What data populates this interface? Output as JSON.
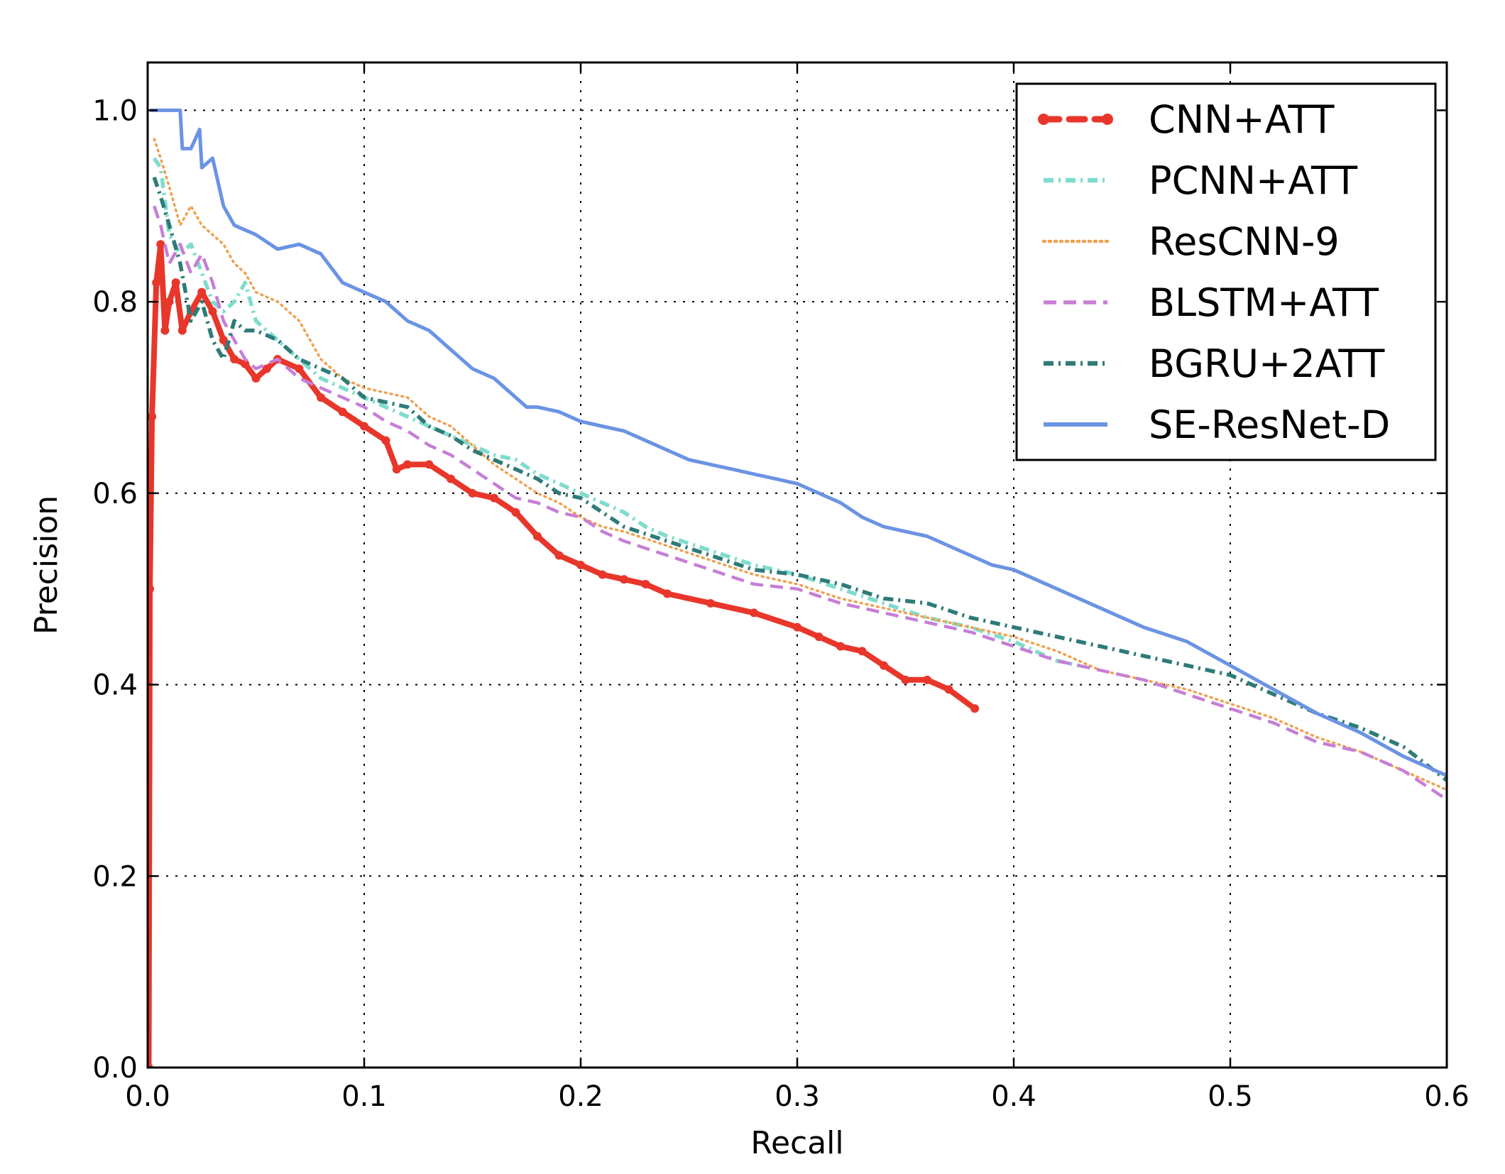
{
  "chart_data": {
    "type": "line",
    "title": "",
    "xlabel": "Recall",
    "ylabel": "Precision",
    "xlim": [
      0.0,
      0.6
    ],
    "ylim": [
      0.0,
      1.05
    ],
    "xticks": [
      "0.0",
      "0.1",
      "0.2",
      "0.3",
      "0.4",
      "0.5",
      "0.6"
    ],
    "yticks": [
      "0.0",
      "0.2",
      "0.4",
      "0.6",
      "0.8",
      "1.0"
    ],
    "grid": true,
    "legend_position": "top-right",
    "series": [
      {
        "name": "CNN+ATT",
        "color": "#e8362b",
        "line_style": "dashed-dot-markers",
        "points": [
          [
            0.0005,
            0.0
          ],
          [
            0.001,
            0.5
          ],
          [
            0.002,
            0.68
          ],
          [
            0.004,
            0.82
          ],
          [
            0.006,
            0.86
          ],
          [
            0.008,
            0.77
          ],
          [
            0.01,
            0.8
          ],
          [
            0.013,
            0.82
          ],
          [
            0.016,
            0.77
          ],
          [
            0.02,
            0.79
          ],
          [
            0.025,
            0.81
          ],
          [
            0.03,
            0.79
          ],
          [
            0.035,
            0.76
          ],
          [
            0.04,
            0.74
          ],
          [
            0.045,
            0.735
          ],
          [
            0.05,
            0.72
          ],
          [
            0.055,
            0.73
          ],
          [
            0.06,
            0.74
          ],
          [
            0.07,
            0.73
          ],
          [
            0.08,
            0.7
          ],
          [
            0.09,
            0.685
          ],
          [
            0.1,
            0.67
          ],
          [
            0.11,
            0.655
          ],
          [
            0.115,
            0.625
          ],
          [
            0.12,
            0.63
          ],
          [
            0.13,
            0.63
          ],
          [
            0.14,
            0.615
          ],
          [
            0.15,
            0.6
          ],
          [
            0.16,
            0.595
          ],
          [
            0.17,
            0.58
          ],
          [
            0.18,
            0.555
          ],
          [
            0.19,
            0.535
          ],
          [
            0.2,
            0.525
          ],
          [
            0.21,
            0.515
          ],
          [
            0.22,
            0.51
          ],
          [
            0.23,
            0.505
          ],
          [
            0.24,
            0.495
          ],
          [
            0.26,
            0.485
          ],
          [
            0.28,
            0.475
          ],
          [
            0.3,
            0.46
          ],
          [
            0.31,
            0.45
          ],
          [
            0.32,
            0.44
          ],
          [
            0.33,
            0.435
          ],
          [
            0.34,
            0.42
          ],
          [
            0.35,
            0.405
          ],
          [
            0.36,
            0.405
          ],
          [
            0.37,
            0.395
          ],
          [
            0.382,
            0.375
          ]
        ]
      },
      {
        "name": "PCNN+ATT",
        "color": "#7edccd",
        "line_style": "dash-dot",
        "points": [
          [
            0.003,
            0.95
          ],
          [
            0.006,
            0.94
          ],
          [
            0.01,
            0.87
          ],
          [
            0.015,
            0.85
          ],
          [
            0.02,
            0.86
          ],
          [
            0.025,
            0.83
          ],
          [
            0.03,
            0.8
          ],
          [
            0.035,
            0.79
          ],
          [
            0.04,
            0.8
          ],
          [
            0.045,
            0.82
          ],
          [
            0.05,
            0.78
          ],
          [
            0.06,
            0.76
          ],
          [
            0.07,
            0.74
          ],
          [
            0.08,
            0.72
          ],
          [
            0.09,
            0.71
          ],
          [
            0.1,
            0.7
          ],
          [
            0.11,
            0.69
          ],
          [
            0.12,
            0.68
          ],
          [
            0.13,
            0.67
          ],
          [
            0.14,
            0.66
          ],
          [
            0.15,
            0.65
          ],
          [
            0.16,
            0.64
          ],
          [
            0.17,
            0.635
          ],
          [
            0.18,
            0.62
          ],
          [
            0.19,
            0.61
          ],
          [
            0.2,
            0.6
          ],
          [
            0.21,
            0.59
          ],
          [
            0.22,
            0.58
          ],
          [
            0.23,
            0.565
          ],
          [
            0.24,
            0.555
          ],
          [
            0.26,
            0.54
          ],
          [
            0.28,
            0.525
          ],
          [
            0.3,
            0.515
          ],
          [
            0.32,
            0.5
          ],
          [
            0.34,
            0.485
          ],
          [
            0.36,
            0.47
          ],
          [
            0.38,
            0.46
          ],
          [
            0.4,
            0.445
          ],
          [
            0.42,
            0.425
          ],
          [
            0.43,
            0.42
          ]
        ]
      },
      {
        "name": "ResCNN-9",
        "color": "#f0a050",
        "line_style": "dotted",
        "points": [
          [
            0.003,
            0.97
          ],
          [
            0.006,
            0.95
          ],
          [
            0.01,
            0.92
          ],
          [
            0.015,
            0.88
          ],
          [
            0.02,
            0.9
          ],
          [
            0.025,
            0.88
          ],
          [
            0.03,
            0.87
          ],
          [
            0.035,
            0.86
          ],
          [
            0.04,
            0.84
          ],
          [
            0.045,
            0.83
          ],
          [
            0.05,
            0.81
          ],
          [
            0.06,
            0.8
          ],
          [
            0.07,
            0.78
          ],
          [
            0.08,
            0.74
          ],
          [
            0.09,
            0.72
          ],
          [
            0.1,
            0.71
          ],
          [
            0.11,
            0.705
          ],
          [
            0.12,
            0.7
          ],
          [
            0.13,
            0.68
          ],
          [
            0.14,
            0.67
          ],
          [
            0.15,
            0.65
          ],
          [
            0.16,
            0.63
          ],
          [
            0.17,
            0.615
          ],
          [
            0.18,
            0.6
          ],
          [
            0.19,
            0.59
          ],
          [
            0.2,
            0.575
          ],
          [
            0.21,
            0.565
          ],
          [
            0.22,
            0.56
          ],
          [
            0.24,
            0.545
          ],
          [
            0.26,
            0.53
          ],
          [
            0.28,
            0.515
          ],
          [
            0.3,
            0.505
          ],
          [
            0.32,
            0.49
          ],
          [
            0.34,
            0.48
          ],
          [
            0.36,
            0.47
          ],
          [
            0.38,
            0.46
          ],
          [
            0.4,
            0.45
          ],
          [
            0.42,
            0.435
          ],
          [
            0.44,
            0.415
          ],
          [
            0.46,
            0.405
          ],
          [
            0.48,
            0.395
          ],
          [
            0.5,
            0.38
          ],
          [
            0.52,
            0.365
          ],
          [
            0.54,
            0.345
          ],
          [
            0.56,
            0.33
          ],
          [
            0.58,
            0.31
          ],
          [
            0.6,
            0.29
          ]
        ]
      },
      {
        "name": "BLSTM+ATT",
        "color": "#c77ed6",
        "line_style": "dashed",
        "points": [
          [
            0.003,
            0.9
          ],
          [
            0.006,
            0.88
          ],
          [
            0.01,
            0.84
          ],
          [
            0.015,
            0.86
          ],
          [
            0.02,
            0.83
          ],
          [
            0.025,
            0.85
          ],
          [
            0.03,
            0.82
          ],
          [
            0.035,
            0.78
          ],
          [
            0.04,
            0.76
          ],
          [
            0.045,
            0.74
          ],
          [
            0.05,
            0.73
          ],
          [
            0.06,
            0.74
          ],
          [
            0.07,
            0.72
          ],
          [
            0.08,
            0.71
          ],
          [
            0.09,
            0.7
          ],
          [
            0.1,
            0.69
          ],
          [
            0.11,
            0.675
          ],
          [
            0.12,
            0.665
          ],
          [
            0.13,
            0.65
          ],
          [
            0.14,
            0.64
          ],
          [
            0.15,
            0.625
          ],
          [
            0.16,
            0.61
          ],
          [
            0.17,
            0.595
          ],
          [
            0.18,
            0.59
          ],
          [
            0.19,
            0.58
          ],
          [
            0.2,
            0.575
          ],
          [
            0.21,
            0.56
          ],
          [
            0.22,
            0.55
          ],
          [
            0.24,
            0.535
          ],
          [
            0.26,
            0.52
          ],
          [
            0.28,
            0.505
          ],
          [
            0.3,
            0.5
          ],
          [
            0.32,
            0.485
          ],
          [
            0.34,
            0.475
          ],
          [
            0.36,
            0.465
          ],
          [
            0.38,
            0.455
          ],
          [
            0.4,
            0.44
          ],
          [
            0.42,
            0.425
          ],
          [
            0.44,
            0.415
          ],
          [
            0.46,
            0.405
          ],
          [
            0.48,
            0.39
          ],
          [
            0.5,
            0.375
          ],
          [
            0.52,
            0.36
          ],
          [
            0.54,
            0.34
          ],
          [
            0.56,
            0.33
          ],
          [
            0.58,
            0.31
          ],
          [
            0.6,
            0.28
          ]
        ]
      },
      {
        "name": "BGRU+2ATT",
        "color": "#2e7b78",
        "line_style": "dash-dot",
        "points": [
          [
            0.003,
            0.93
          ],
          [
            0.006,
            0.91
          ],
          [
            0.01,
            0.88
          ],
          [
            0.015,
            0.84
          ],
          [
            0.02,
            0.78
          ],
          [
            0.025,
            0.8
          ],
          [
            0.03,
            0.76
          ],
          [
            0.035,
            0.74
          ],
          [
            0.04,
            0.78
          ],
          [
            0.045,
            0.77
          ],
          [
            0.05,
            0.77
          ],
          [
            0.06,
            0.76
          ],
          [
            0.07,
            0.74
          ],
          [
            0.08,
            0.73
          ],
          [
            0.09,
            0.72
          ],
          [
            0.1,
            0.7
          ],
          [
            0.11,
            0.695
          ],
          [
            0.12,
            0.69
          ],
          [
            0.13,
            0.67
          ],
          [
            0.14,
            0.66
          ],
          [
            0.15,
            0.645
          ],
          [
            0.16,
            0.635
          ],
          [
            0.17,
            0.625
          ],
          [
            0.18,
            0.615
          ],
          [
            0.19,
            0.6
          ],
          [
            0.2,
            0.595
          ],
          [
            0.21,
            0.58
          ],
          [
            0.22,
            0.565
          ],
          [
            0.24,
            0.55
          ],
          [
            0.26,
            0.535
          ],
          [
            0.28,
            0.52
          ],
          [
            0.3,
            0.515
          ],
          [
            0.32,
            0.505
          ],
          [
            0.34,
            0.49
          ],
          [
            0.36,
            0.485
          ],
          [
            0.38,
            0.47
          ],
          [
            0.4,
            0.46
          ],
          [
            0.42,
            0.45
          ],
          [
            0.44,
            0.44
          ],
          [
            0.46,
            0.43
          ],
          [
            0.48,
            0.42
          ],
          [
            0.5,
            0.41
          ],
          [
            0.52,
            0.39
          ],
          [
            0.54,
            0.37
          ],
          [
            0.56,
            0.355
          ],
          [
            0.58,
            0.335
          ],
          [
            0.6,
            0.3
          ]
        ]
      },
      {
        "name": "SE-ResNet-D",
        "color": "#6b93e4",
        "line_style": "solid",
        "points": [
          [
            0.001,
            1.0
          ],
          [
            0.015,
            1.0
          ],
          [
            0.016,
            0.96
          ],
          [
            0.02,
            0.96
          ],
          [
            0.024,
            0.98
          ],
          [
            0.025,
            0.94
          ],
          [
            0.03,
            0.95
          ],
          [
            0.032,
            0.93
          ],
          [
            0.035,
            0.9
          ],
          [
            0.04,
            0.88
          ],
          [
            0.05,
            0.87
          ],
          [
            0.06,
            0.855
          ],
          [
            0.07,
            0.86
          ],
          [
            0.08,
            0.85
          ],
          [
            0.09,
            0.82
          ],
          [
            0.1,
            0.81
          ],
          [
            0.11,
            0.8
          ],
          [
            0.12,
            0.78
          ],
          [
            0.13,
            0.77
          ],
          [
            0.14,
            0.75
          ],
          [
            0.15,
            0.73
          ],
          [
            0.16,
            0.72
          ],
          [
            0.17,
            0.7
          ],
          [
            0.175,
            0.69
          ],
          [
            0.18,
            0.69
          ],
          [
            0.19,
            0.685
          ],
          [
            0.2,
            0.675
          ],
          [
            0.21,
            0.67
          ],
          [
            0.22,
            0.665
          ],
          [
            0.23,
            0.655
          ],
          [
            0.24,
            0.645
          ],
          [
            0.25,
            0.635
          ],
          [
            0.26,
            0.63
          ],
          [
            0.27,
            0.625
          ],
          [
            0.28,
            0.62
          ],
          [
            0.29,
            0.615
          ],
          [
            0.3,
            0.61
          ],
          [
            0.31,
            0.6
          ],
          [
            0.32,
            0.59
          ],
          [
            0.33,
            0.575
          ],
          [
            0.34,
            0.565
          ],
          [
            0.35,
            0.56
          ],
          [
            0.36,
            0.555
          ],
          [
            0.37,
            0.545
          ],
          [
            0.38,
            0.535
          ],
          [
            0.39,
            0.525
          ],
          [
            0.4,
            0.52
          ],
          [
            0.42,
            0.5
          ],
          [
            0.44,
            0.48
          ],
          [
            0.46,
            0.46
          ],
          [
            0.48,
            0.445
          ],
          [
            0.5,
            0.42
          ],
          [
            0.52,
            0.395
          ],
          [
            0.54,
            0.37
          ],
          [
            0.56,
            0.35
          ],
          [
            0.58,
            0.325
          ],
          [
            0.6,
            0.305
          ]
        ]
      }
    ]
  }
}
